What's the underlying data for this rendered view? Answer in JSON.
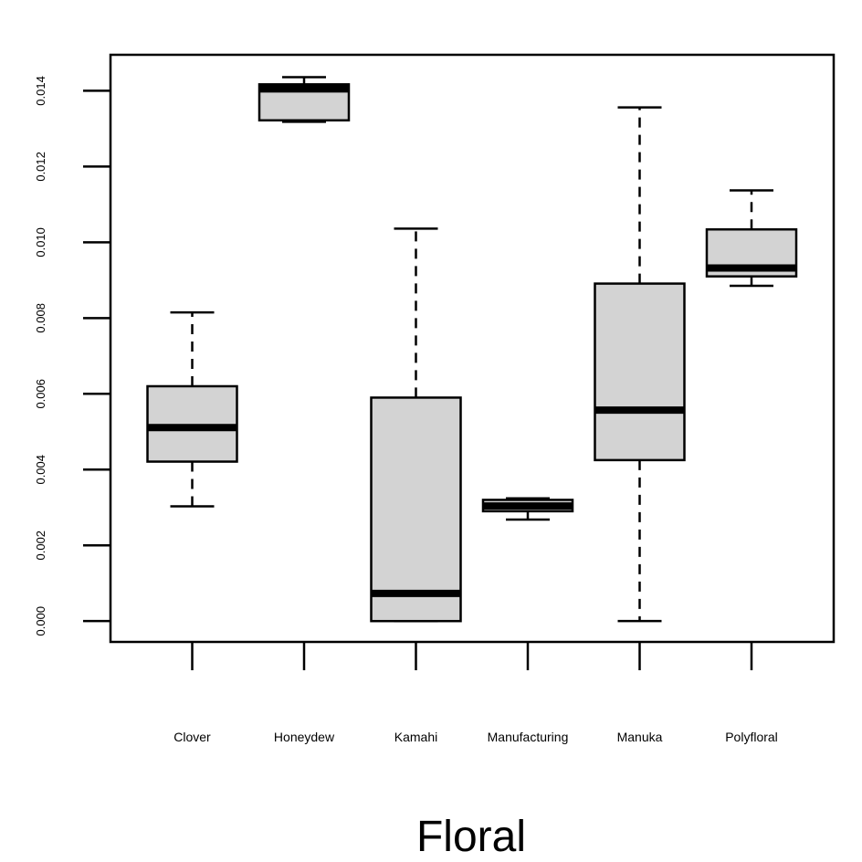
{
  "chart_data": {
    "type": "box",
    "xlabel": "Floral",
    "ylabel": "",
    "ylim": [
      -0.00055,
      0.01495
    ],
    "yticks": [
      "0.000",
      "0.002",
      "0.004",
      "0.006",
      "0.008",
      "0.010",
      "0.012",
      "0.014"
    ],
    "categories": [
      "Clover",
      "Honeydew",
      "Kamahi",
      "Manufacturing",
      "Manuka",
      "Polyfloral"
    ],
    "boxes": [
      {
        "label": "Clover",
        "min": 0.00303,
        "q1": 0.00421,
        "median": 0.00511,
        "q3": 0.0062,
        "max": 0.00815
      },
      {
        "label": "Honeydew",
        "min": 0.01318,
        "q1": 0.01322,
        "median": 0.01405,
        "q3": 0.01417,
        "max": 0.01436
      },
      {
        "label": "Kamahi",
        "min": 0.0,
        "q1": 0.0,
        "median": 0.00073,
        "q3": 0.0059,
        "max": 0.01036
      },
      {
        "label": "Manufacturing",
        "min": 0.00268,
        "q1": 0.0029,
        "median": 0.00304,
        "q3": 0.0032,
        "max": 0.00324
      },
      {
        "label": "Manuka",
        "min": 0.0,
        "q1": 0.00425,
        "median": 0.00557,
        "q3": 0.00891,
        "max": 0.01356
      },
      {
        "label": "Polyfloral",
        "min": 0.00885,
        "q1": 0.0091,
        "median": 0.00932,
        "q3": 0.01034,
        "max": 0.01137
      }
    ],
    "box_fill": "#d3d3d3",
    "grid": false,
    "legend": "none"
  }
}
